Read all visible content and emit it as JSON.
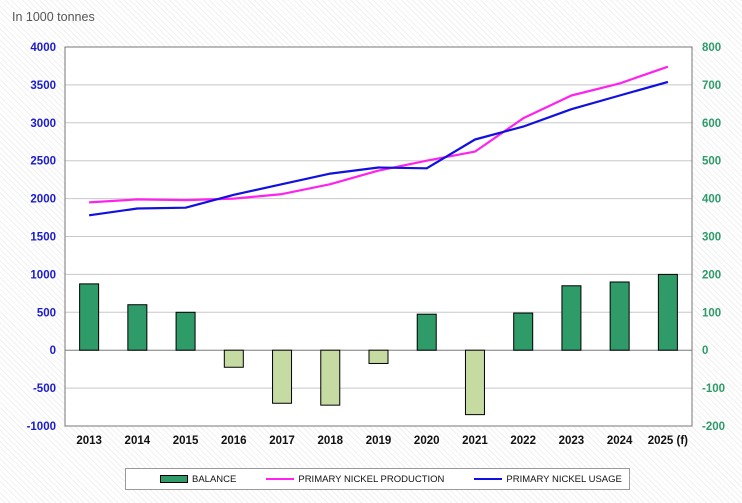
{
  "unit_label": "In 1000 tonnes",
  "legend": {
    "balance": "BALANCE",
    "production": "PRIMARY NICKEL PRODUCTION",
    "usage": "PRIMARY NICKEL USAGE"
  },
  "colors": {
    "balance_positive": "#2e9b68",
    "balance_negative": "#c6dba2",
    "production": "#ff22ee",
    "usage": "#1010e0",
    "left_axis": "#1a1ad0",
    "right_axis": "#2e9b68"
  },
  "chart_data": {
    "type": "bar+line",
    "categories": [
      "2013",
      "2014",
      "2015",
      "2016",
      "2017",
      "2018",
      "2019",
      "2020",
      "2021",
      "2022",
      "2023",
      "2024",
      "2025 (f)"
    ],
    "left_axis": {
      "ylim": [
        -1000,
        4000
      ],
      "ticks": [
        -1000,
        -500,
        0,
        500,
        1000,
        1500,
        2000,
        2500,
        3000,
        3500,
        4000
      ]
    },
    "right_axis": {
      "ylim": [
        -200,
        800
      ],
      "ticks": [
        -200,
        -100,
        0,
        100,
        200,
        300,
        400,
        500,
        600,
        700,
        800
      ]
    },
    "series": [
      {
        "name": "BALANCE",
        "kind": "bar",
        "axis": "right",
        "values": [
          175,
          120,
          100,
          -45,
          -140,
          -145,
          -35,
          95,
          -170,
          98,
          170,
          180,
          200
        ]
      },
      {
        "name": "PRIMARY NICKEL PRODUCTION",
        "kind": "line",
        "axis": "left",
        "values": [
          1950,
          1990,
          1980,
          2000,
          2060,
          2190,
          2370,
          2500,
          2620,
          3060,
          3360,
          3520,
          3740
        ]
      },
      {
        "name": "PRIMARY NICKEL USAGE",
        "kind": "line",
        "axis": "left",
        "values": [
          1780,
          1870,
          1880,
          2050,
          2190,
          2330,
          2410,
          2400,
          2780,
          2950,
          3180,
          3360,
          3540
        ]
      }
    ],
    "grid": true
  }
}
